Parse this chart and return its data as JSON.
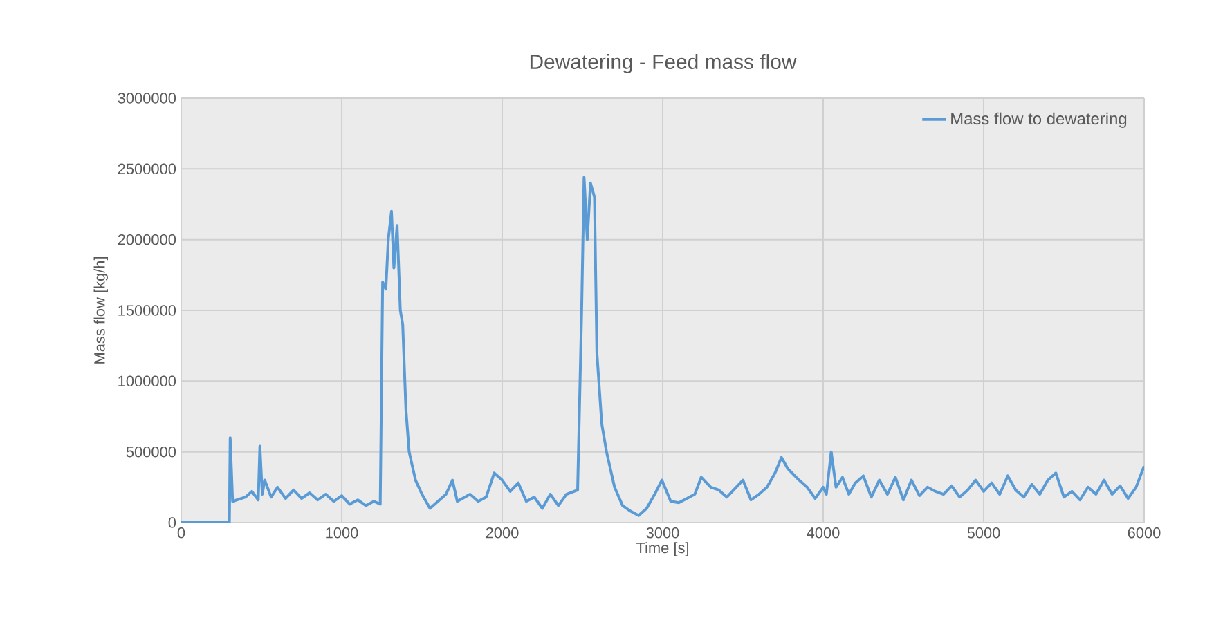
{
  "chart_data": {
    "type": "line",
    "title": "Dewatering - Feed mass flow",
    "xlabel": "Time [s]",
    "ylabel": "Mass flow [kg/h]",
    "x": [
      0,
      300,
      305,
      320,
      400,
      440,
      480,
      490,
      505,
      520,
      560,
      600,
      650,
      700,
      750,
      800,
      850,
      900,
      950,
      1000,
      1050,
      1100,
      1150,
      1200,
      1240,
      1255,
      1275,
      1290,
      1310,
      1325,
      1345,
      1365,
      1380,
      1400,
      1420,
      1440,
      1460,
      1500,
      1550,
      1600,
      1650,
      1690,
      1720,
      1800,
      1850,
      1900,
      1950,
      2000,
      2050,
      2100,
      2150,
      2200,
      2250,
      2300,
      2350,
      2400,
      2470,
      2495,
      2510,
      2530,
      2550,
      2575,
      2590,
      2620,
      2650,
      2700,
      2750,
      2800,
      2850,
      2900,
      2950,
      2995,
      3050,
      3100,
      3150,
      3200,
      3240,
      3300,
      3350,
      3400,
      3450,
      3500,
      3550,
      3600,
      3650,
      3700,
      3740,
      3780,
      3850,
      3900,
      3950,
      4000,
      4020,
      4050,
      4080,
      4120,
      4160,
      4200,
      4250,
      4300,
      4350,
      4400,
      4450,
      4500,
      4550,
      4600,
      4650,
      4700,
      4750,
      4800,
      4850,
      4900,
      4950,
      5000,
      5050,
      5100,
      5150,
      5200,
      5250,
      5300,
      5350,
      5400,
      5450,
      5500,
      5550,
      5600,
      5650,
      5700,
      5750,
      5800,
      5850,
      5900,
      5950,
      6000
    ],
    "series": [
      {
        "name": "Mass flow to dewatering",
        "color": "#5b9bd5",
        "values": [
          0,
          0,
          600000,
          150000,
          180000,
          220000,
          160000,
          540000,
          200000,
          300000,
          180000,
          250000,
          170000,
          230000,
          170000,
          210000,
          160000,
          200000,
          150000,
          190000,
          130000,
          160000,
          120000,
          150000,
          130000,
          1700000,
          1650000,
          2000000,
          2200000,
          1800000,
          2100000,
          1500000,
          1400000,
          800000,
          500000,
          400000,
          300000,
          200000,
          100000,
          150000,
          200000,
          300000,
          150000,
          200000,
          150000,
          180000,
          350000,
          300000,
          220000,
          280000,
          150000,
          180000,
          100000,
          200000,
          120000,
          200000,
          230000,
          1500000,
          2440000,
          2000000,
          2400000,
          2300000,
          1200000,
          700000,
          500000,
          250000,
          120000,
          80000,
          50000,
          100000,
          200000,
          300000,
          150000,
          140000,
          170000,
          200000,
          320000,
          250000,
          230000,
          180000,
          240000,
          300000,
          160000,
          200000,
          250000,
          350000,
          460000,
          380000,
          300000,
          250000,
          170000,
          250000,
          200000,
          500000,
          250000,
          320000,
          200000,
          280000,
          330000,
          180000,
          300000,
          200000,
          320000,
          160000,
          300000,
          190000,
          250000,
          220000,
          200000,
          260000,
          180000,
          230000,
          300000,
          220000,
          280000,
          200000,
          330000,
          230000,
          180000,
          270000,
          200000,
          300000,
          350000,
          180000,
          220000,
          160000,
          250000,
          200000,
          300000,
          200000,
          260000,
          170000,
          250000,
          400000
        ]
      }
    ],
    "xlim": [
      0,
      6000
    ],
    "xticks": [
      0,
      1000,
      2000,
      3000,
      4000,
      5000,
      6000
    ],
    "ylim": [
      0,
      3000000
    ],
    "yticks": [
      0,
      500000,
      1000000,
      1500000,
      2000000,
      2500000,
      3000000
    ],
    "grid": true,
    "legend": "top right",
    "marker": "none",
    "line_style": "solid"
  }
}
